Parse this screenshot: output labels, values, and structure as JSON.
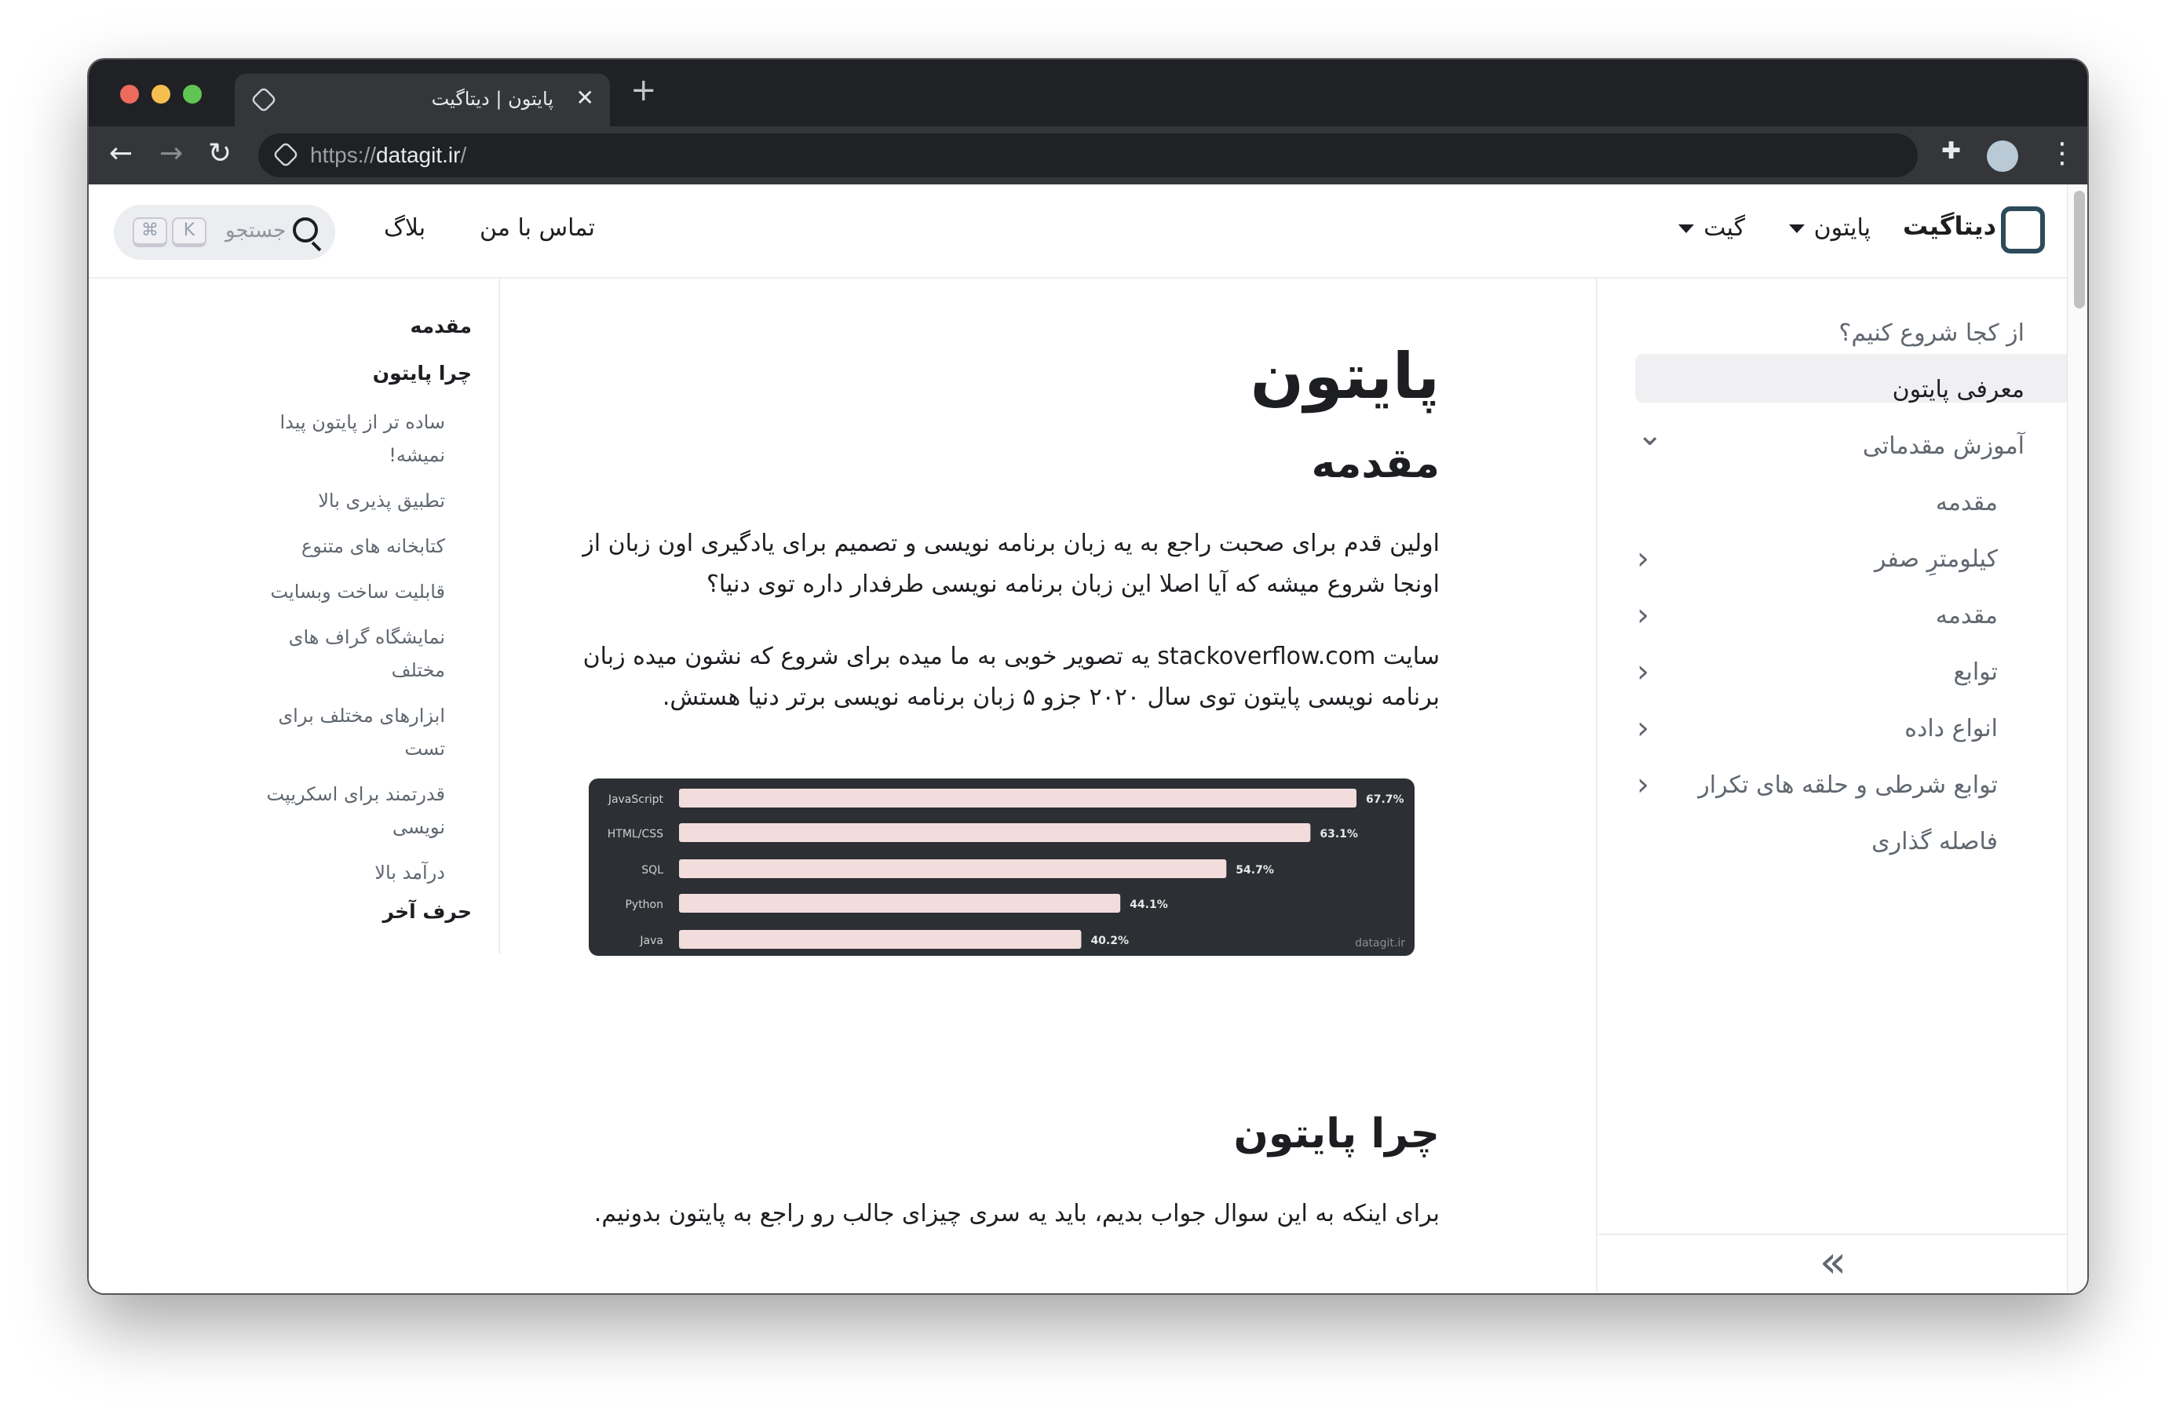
{
  "browser": {
    "tab_title": "پایتون | دیتاگیت",
    "url_scheme": "https://",
    "url_host": "datagit.ir",
    "url_path": "/",
    "close_symbol": "✕",
    "new_tab_symbol": "+"
  },
  "header": {
    "brand": "دیتاگیت",
    "menu": [
      {
        "label": "پایتون"
      },
      {
        "label": "گیت"
      }
    ],
    "links": [
      {
        "label": "تماس با من"
      },
      {
        "label": "بلاگ"
      }
    ],
    "search": {
      "placeholder": "جستجو",
      "keys": [
        "⌘",
        "K"
      ]
    }
  },
  "sidebar": {
    "items": [
      {
        "label": "از کجا شروع کنیم؟"
      },
      {
        "label": "معرفی پایتون",
        "active": true
      },
      {
        "label": "آموزش مقدماتی",
        "expanded": true
      },
      {
        "label": "مقدمه"
      },
      {
        "label": "کیلومترِ صفر"
      },
      {
        "label": "مقدمه"
      },
      {
        "label": "توابع"
      },
      {
        "label": "انواع داده"
      },
      {
        "label": "توابع شرطی و حلقه های تکرار"
      },
      {
        "label": "فاصله گذاری"
      }
    ],
    "collapse_symbol": "»"
  },
  "article": {
    "title": "پایتون",
    "section1": "مقدمه",
    "p1": "اولین قدم برای صحبت راجع به یه زبان برنامه نویسی و تصمیم برای یادگیری اون زبان از اونجا شروع میشه که آیا اصلا این زبان برنامه نویسی طرفدار داره توی دنیا؟",
    "p2": "سایت stackoverflow.com یه تصویر خوبی به ما میده برای شروع که نشون میده زبان برنامه نویسی پایتون توی سال ۲۰۲۰ جزو ۵ زبان برنامه نویسی برتر دنیا هستش.",
    "section2": "چرا پایتون",
    "p3": "برای اینکه به این سوال جواب بدیم، باید یه سری چیزای جالب رو راجع به پایتون بدونیم."
  },
  "toc": {
    "items": [
      {
        "label": "مقدمه",
        "level": 1
      },
      {
        "label": "چرا پایتون",
        "level": 1
      },
      {
        "label": "ساده تر از پایتون پیدا نمیشه!",
        "level": 2
      },
      {
        "label": "تطبیق پذیری بالا",
        "level": 2
      },
      {
        "label": "کتابخانه های متنوع",
        "level": 2
      },
      {
        "label": "قابلیت ساخت وبسایت",
        "level": 2
      },
      {
        "label": "نمایشگاه گراف های مختلف",
        "level": 2
      },
      {
        "label": "ابزارهای مختلف برای تست",
        "level": 2
      },
      {
        "label": "قدرتمند برای اسکریپت نویسی",
        "level": 2
      },
      {
        "label": "درآمد بالا",
        "level": 2
      },
      {
        "label": "حرف آخر",
        "level": 1
      }
    ]
  },
  "chart_data": {
    "type": "bar",
    "orientation": "horizontal",
    "categories": [
      "JavaScript",
      "HTML/CSS",
      "SQL",
      "Python",
      "Java"
    ],
    "values": [
      67.7,
      63.1,
      54.7,
      44.1,
      40.2
    ],
    "value_labels": [
      "67.7%",
      "63.1%",
      "54.7%",
      "44.1%",
      "40.2%"
    ],
    "watermark": "datagit.ir",
    "colors": {
      "bar": "#f2dcdc",
      "background": "#2c2f33"
    }
  }
}
